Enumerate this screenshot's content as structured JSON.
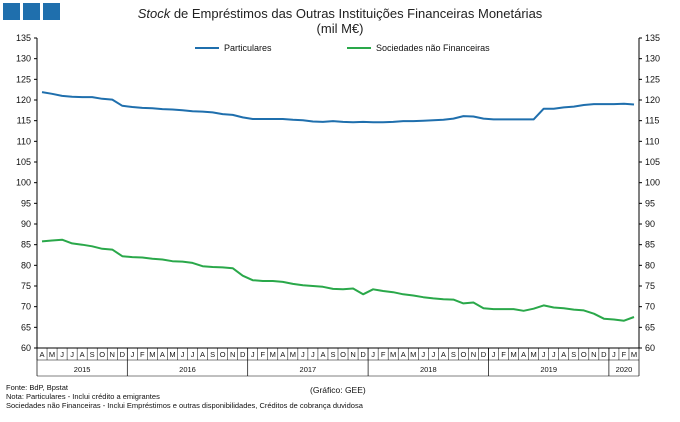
{
  "header": {
    "title_italic": "Stock",
    "title_rest": " de Empréstimos das Outras Instituições Financeiras Monetárias",
    "subtitle": "(mil M€)"
  },
  "footer": {
    "source": "Fonte: BdP, Bpstat",
    "note1": "Nota: Particulares - Inclui crédito a emigrantes",
    "note2": "Sociedades não Financeiras - Inclui Empréstimos e outras disponibilidades, Créditos de cobrança duvidosa",
    "graph_credit": "(Gráfico: GEE)"
  },
  "colors": {
    "particulares": "#1f6fad",
    "sociedades": "#2aa84a",
    "brand": "#1f6fad"
  },
  "chart_data": {
    "type": "line",
    "title": "Stock de Empréstimos das Outras Instituições Financeiras Monetárias",
    "subtitle": "(mil M€)",
    "ylim": [
      60,
      135
    ],
    "yticks": [
      60,
      65,
      70,
      75,
      80,
      85,
      90,
      95,
      100,
      105,
      110,
      115,
      120,
      125,
      130,
      135
    ],
    "grid": false,
    "legend_position": "top",
    "x_month_labels": [
      "A",
      "M",
      "J",
      "J",
      "A",
      "S",
      "O",
      "N",
      "D",
      "J",
      "F",
      "M",
      "A",
      "M",
      "J",
      "J",
      "A",
      "S",
      "O",
      "N",
      "D",
      "J",
      "F",
      "M",
      "A",
      "M",
      "J",
      "J",
      "A",
      "S",
      "O",
      "N",
      "D",
      "J",
      "F",
      "M",
      "A",
      "M",
      "J",
      "J",
      "A",
      "S",
      "O",
      "N",
      "D",
      "J",
      "F",
      "M",
      "A",
      "M",
      "J",
      "J",
      "A",
      "S",
      "O",
      "N",
      "D",
      "J",
      "F",
      "M"
    ],
    "year_groups": [
      {
        "label": "2015",
        "start": 0,
        "end": 8
      },
      {
        "label": "2016",
        "start": 9,
        "end": 20
      },
      {
        "label": "2017",
        "start": 21,
        "end": 32
      },
      {
        "label": "2018",
        "start": 33,
        "end": 44
      },
      {
        "label": "2019",
        "start": 45,
        "end": 56
      },
      {
        "label": "2020",
        "start": 57,
        "end": 59
      }
    ],
    "series": [
      {
        "name": "Particulares",
        "values": [
          121.9,
          121.5,
          121.0,
          120.8,
          120.7,
          120.7,
          120.3,
          120.1,
          118.6,
          118.3,
          118.1,
          118.0,
          117.8,
          117.7,
          117.5,
          117.3,
          117.2,
          117.0,
          116.6,
          116.4,
          115.8,
          115.4,
          115.4,
          115.4,
          115.4,
          115.2,
          115.1,
          114.8,
          114.7,
          114.9,
          114.7,
          114.6,
          114.7,
          114.6,
          114.6,
          114.7,
          114.9,
          114.9,
          115.0,
          115.1,
          115.2,
          115.5,
          116.1,
          116.0,
          115.5,
          115.3,
          115.3,
          115.3,
          115.3,
          115.3,
          117.9,
          117.9,
          118.2,
          118.4,
          118.8,
          119.0,
          119.0,
          119.0,
          119.1,
          118.9
        ]
      },
      {
        "name": "Sociedades não Financeiras",
        "values": [
          85.8,
          86.0,
          86.2,
          85.3,
          85.0,
          84.6,
          84.0,
          83.8,
          82.2,
          82.0,
          81.9,
          81.6,
          81.4,
          81.0,
          80.9,
          80.6,
          79.8,
          79.6,
          79.5,
          79.3,
          77.5,
          76.4,
          76.2,
          76.2,
          76.0,
          75.5,
          75.2,
          75.0,
          74.8,
          74.3,
          74.2,
          74.4,
          73.0,
          74.2,
          73.8,
          73.5,
          73.0,
          72.7,
          72.3,
          72.0,
          71.8,
          71.7,
          70.8,
          71.0,
          69.6,
          69.4,
          69.4,
          69.4,
          69.0,
          69.5,
          70.3,
          69.8,
          69.6,
          69.3,
          69.1,
          68.3,
          67.1,
          66.9,
          66.6,
          67.5
        ]
      }
    ]
  }
}
